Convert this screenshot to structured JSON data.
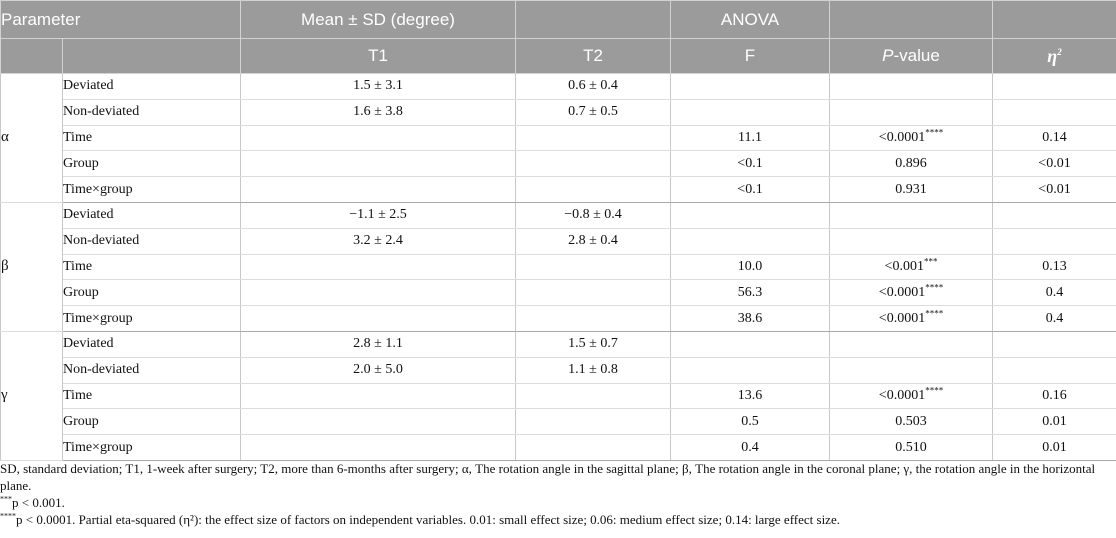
{
  "table": {
    "headers": {
      "parameter": "Parameter",
      "mean_sd": "Mean ± SD (degree)",
      "anova": "ANOVA",
      "t1": "T1",
      "t2": "T2",
      "f": "F",
      "p_value_italic": "P",
      "p_value_rest": "-value",
      "eta": "η",
      "eta_sup": "2"
    },
    "groups": [
      {
        "symbol": "α",
        "rows": [
          {
            "label": "Deviated",
            "t1": "1.5 ± 3.1",
            "t2": "0.6 ± 0.4",
            "f": "",
            "p": "",
            "p_sup": "",
            "eta": ""
          },
          {
            "label": "Non-deviated",
            "t1": "1.6 ± 3.8",
            "t2": "0.7 ± 0.5",
            "f": "",
            "p": "",
            "p_sup": "",
            "eta": ""
          },
          {
            "label": "Time",
            "t1": "",
            "t2": "",
            "f": "11.1",
            "p": "<0.0001",
            "p_sup": "****",
            "eta": "0.14"
          },
          {
            "label": "Group",
            "t1": "",
            "t2": "",
            "f": "<0.1",
            "p": "0.896",
            "p_sup": "",
            "eta": "<0.01"
          },
          {
            "label": "Time×group",
            "t1": "",
            "t2": "",
            "f": "<0.1",
            "p": "0.931",
            "p_sup": "",
            "eta": "<0.01"
          }
        ]
      },
      {
        "symbol": "β",
        "rows": [
          {
            "label": "Deviated",
            "t1": "−1.1 ± 2.5",
            "t2": "−0.8 ± 0.4",
            "f": "",
            "p": "",
            "p_sup": "",
            "eta": ""
          },
          {
            "label": "Non-deviated",
            "t1": "3.2 ± 2.4",
            "t2": "2.8 ± 0.4",
            "f": "",
            "p": "",
            "p_sup": "",
            "eta": ""
          },
          {
            "label": "Time",
            "t1": "",
            "t2": "",
            "f": "10.0",
            "p": "<0.001",
            "p_sup": "***",
            "eta": "0.13"
          },
          {
            "label": "Group",
            "t1": "",
            "t2": "",
            "f": "56.3",
            "p": "<0.0001",
            "p_sup": "****",
            "eta": "0.4"
          },
          {
            "label": "Time×group",
            "t1": "",
            "t2": "",
            "f": "38.6",
            "p": "<0.0001",
            "p_sup": "****",
            "eta": "0.4"
          }
        ]
      },
      {
        "symbol": "γ",
        "rows": [
          {
            "label": "Deviated",
            "t1": "2.8 ± 1.1",
            "t2": "1.5 ± 0.7",
            "f": "",
            "p": "",
            "p_sup": "",
            "eta": ""
          },
          {
            "label": "Non-deviated",
            "t1": "2.0 ± 5.0",
            "t2": "1.1 ± 0.8",
            "f": "",
            "p": "",
            "p_sup": "",
            "eta": ""
          },
          {
            "label": "Time",
            "t1": "",
            "t2": "",
            "f": "13.6",
            "p": "<0.0001",
            "p_sup": "****",
            "eta": "0.16"
          },
          {
            "label": "Group",
            "t1": "",
            "t2": "",
            "f": "0.5",
            "p": "0.503",
            "p_sup": "",
            "eta": "0.01"
          },
          {
            "label": "Time×group",
            "t1": "",
            "t2": "",
            "f": "0.4",
            "p": "0.510",
            "p_sup": "",
            "eta": "0.01"
          }
        ]
      }
    ]
  },
  "footnotes": {
    "line1": "SD, standard deviation; T1, 1-week after surgery; T2, more than 6-months after surgery; α, The rotation angle in the sagittal plane; β, The rotation angle in the coronal plane; γ, the rotation angle in the horizontal plane.",
    "n1_mark": "***",
    "n1_text": "p < 0.001.",
    "n2_mark": "****",
    "n2_text": "p < 0.0001. Partial eta-squared (η²): the effect size of factors on independent variables. 0.01: small effect size; 0.06: medium effect size; 0.14: large effect size."
  }
}
